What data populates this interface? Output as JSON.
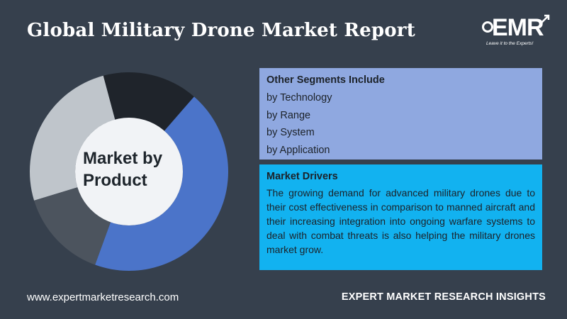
{
  "header": {
    "title": "Global Military Drone Market Report"
  },
  "logo": {
    "text": "EMR",
    "tagline": "Leave it to the Experts!"
  },
  "chart": {
    "center_label_line1": "Market by",
    "center_label_line2": "Product",
    "segment_colors": [
      "#bfc5cb",
      "#1f242b",
      "#4b74c9",
      "#4c545e"
    ]
  },
  "segments_panel": {
    "heading": "Other Segments Include",
    "items": [
      "by Technology",
      "by Range",
      "by System",
      "by Application"
    ]
  },
  "drivers_panel": {
    "heading": "Market Drivers",
    "body": "The growing demand for advanced military drones due to their cost effectiveness in comparison to manned aircraft and their increasing integration into ongoing warfare systems to deal with combat threats is also helping the military drones market grow."
  },
  "footer": {
    "website": "www.expertmarketresearch.com",
    "insights": "EXPERT MARKET RESEARCH INSIGHTS"
  }
}
